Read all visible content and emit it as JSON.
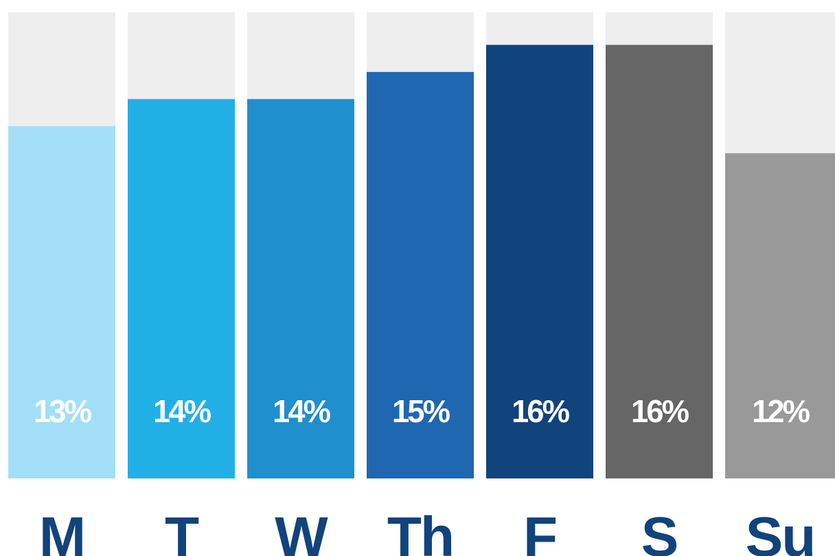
{
  "chart_data": {
    "type": "bar",
    "categories": [
      "M",
      "T",
      "W",
      "Th",
      "F",
      "S",
      "Su"
    ],
    "values": [
      13,
      14,
      14,
      15,
      16,
      16,
      12
    ],
    "value_labels": [
      "13%",
      "14%",
      "14%",
      "15%",
      "16%",
      "16%",
      "12%"
    ],
    "ylim": [
      0,
      17.2
    ],
    "grid": false,
    "legend": "none",
    "colors": {
      "track": "#eeeeee",
      "bars": [
        "#a2dff7",
        "#21b0e5",
        "#208fcd",
        "#1f67b1",
        "#11437c",
        "#666666",
        "#999999"
      ],
      "value_label": "#ffffff",
      "category_label": "#11437c"
    }
  }
}
